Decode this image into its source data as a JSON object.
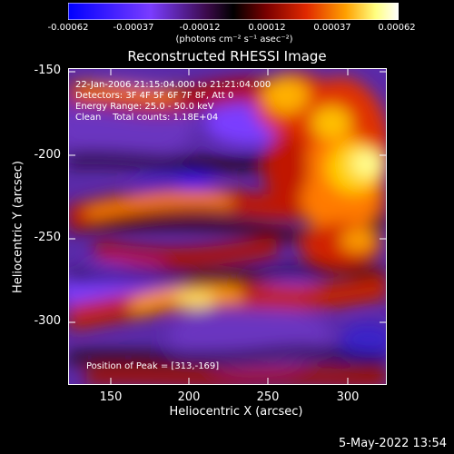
{
  "figure": {
    "title": "Reconstructed RHESSI Image",
    "colorbar": {
      "tick_labels": [
        "-0.00062",
        "-0.00037",
        "-0.00012",
        "0.00012",
        "0.00037",
        "0.00062"
      ],
      "unit_label": "(photons cm⁻² s⁻¹ asec⁻²)",
      "colors": [
        "#0000ff",
        "#7a3cff",
        "#3b0a4a",
        "#000000",
        "#7a0000",
        "#e02800",
        "#ffa000",
        "#ffff80",
        "#ffffff"
      ]
    },
    "annotations": {
      "line1": "22-Jan-2006 21:15:04.000 to 21:21:04.000",
      "line2": "Detectors: 3F 4F 5F 6F 7F 8F, Att 0",
      "line3": "Energy Range: 25.0 - 50.0 keV",
      "line4": "Clean    Total counts: 1.18E+04",
      "peak": "Position of Peak = [313,-169]"
    },
    "x_axis": {
      "label": "Heliocentric X (arcsec)",
      "ticks": [
        "150",
        "200",
        "250",
        "300"
      ],
      "range": [
        125,
        318
      ]
    },
    "y_axis": {
      "label": "Heliocentric Y (arcsec)",
      "ticks": [
        "-150",
        "-200",
        "-250",
        "-300"
      ],
      "range": [
        -340,
        -148
      ]
    },
    "timestamp": "5-May-2022 13:54"
  }
}
